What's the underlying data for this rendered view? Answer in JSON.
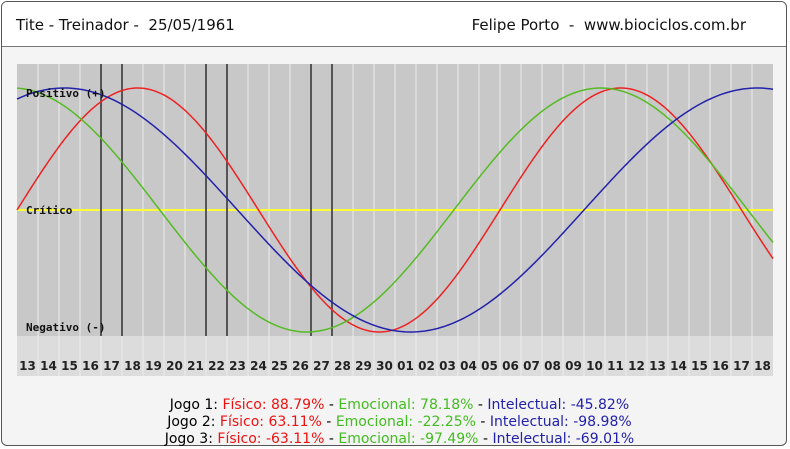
{
  "header": {
    "left": "Tite - Treinador -  25/05/1961",
    "right": "Felipe Porto  -  www.biociclos.com.br"
  },
  "chart_data": {
    "type": "line",
    "x": [
      "13",
      "14",
      "15",
      "16",
      "17",
      "18",
      "19",
      "20",
      "21",
      "22",
      "23",
      "24",
      "25",
      "26",
      "27",
      "28",
      "29",
      "30",
      "01",
      "02",
      "03",
      "04",
      "05",
      "06",
      "07",
      "08",
      "09",
      "10",
      "11",
      "12",
      "13",
      "14",
      "15",
      "16",
      "17",
      "18"
    ],
    "ylim": [
      -100,
      100
    ],
    "labels": {
      "positive": "Positivo (+)",
      "critical": "Crítico",
      "negative": "Negativo (-)"
    },
    "series": [
      {
        "name": "Físico",
        "color": "#ee2222",
        "period": 23,
        "phase_index": 0
      },
      {
        "name": "Emocional",
        "color": "#55bb22",
        "period": 28,
        "phase_index": -7.2
      },
      {
        "name": "Intelectual",
        "color": "#2222aa",
        "period": 33,
        "phase_index": -6.0
      }
    ],
    "game_markers": [
      4,
      5,
      9,
      10,
      14,
      15
    ],
    "colors": {
      "background": "#c8c8c8",
      "grid": "#ececec",
      "axis_band": "#dcdcdc",
      "critical_line": "#ffff33",
      "marker": "#555555"
    }
  },
  "games": [
    {
      "label": "Jogo 1:",
      "fis": "Físico: 88.79%",
      "emo": "Emocional: 78.18%",
      "int": "Intelectual: -45.82%"
    },
    {
      "label": "Jogo 2:",
      "fis": "Físico: 63.11%",
      "emo": "Emocional: -22.25%",
      "int": "Intelectual: -98.98%"
    },
    {
      "label": "Jogo 3:",
      "fis": "Físico: -63.11%",
      "emo": "Emocional: -97.49%",
      "int": "Intelectual: -69.01%"
    }
  ],
  "separator": " - "
}
